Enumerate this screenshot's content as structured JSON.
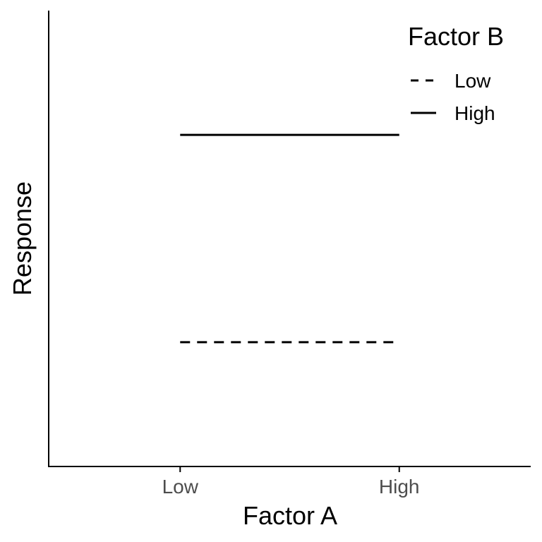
{
  "chart_data": {
    "type": "line",
    "categories": [
      "Low",
      "High"
    ],
    "series": [
      {
        "name": "Low",
        "values": [
          1,
          1
        ],
        "linetype": "dashed",
        "color": "#000000"
      },
      {
        "name": "High",
        "values": [
          2,
          2
        ],
        "linetype": "solid",
        "color": "#000000"
      }
    ],
    "xlabel": "Factor A",
    "ylabel": "Response",
    "legend": {
      "title": "Factor B",
      "placement": "top-right"
    },
    "ylim": [
      0.4,
      2.6
    ],
    "y_ticks_shown": false,
    "grid": false
  }
}
